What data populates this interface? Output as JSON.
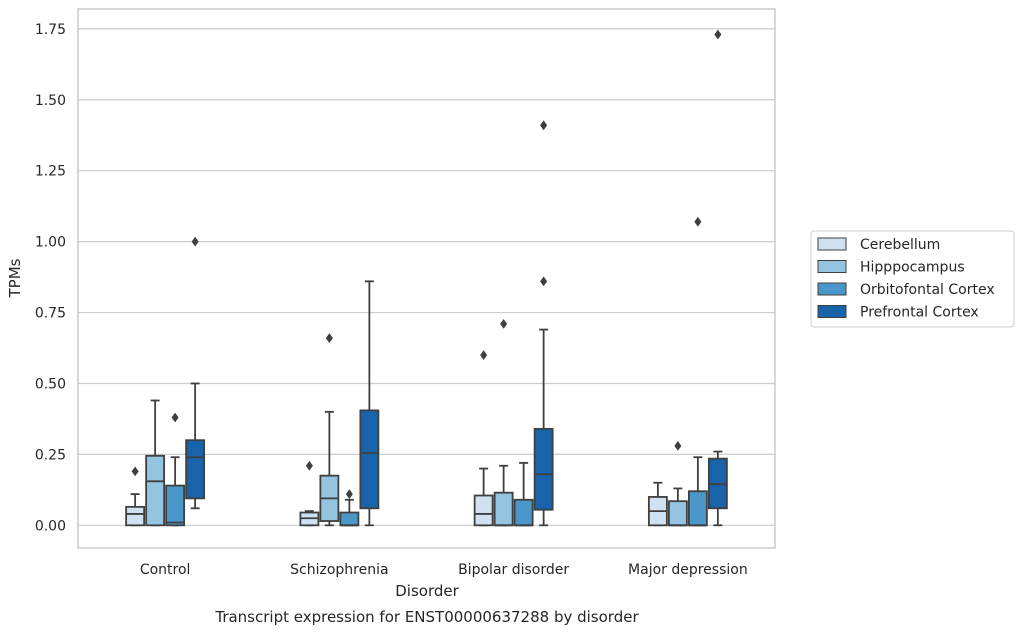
{
  "chart_data": {
    "type": "box",
    "title": "",
    "caption": "Transcript expression for ENST00000637288 by disorder",
    "xlabel": "Disorder",
    "ylabel": "TPMs",
    "ylim": [
      -0.08,
      1.82
    ],
    "yticks": [
      "0.00",
      "0.25",
      "0.50",
      "0.75",
      "1.00",
      "1.25",
      "1.50",
      "1.75"
    ],
    "categories": [
      "Control",
      "Schizophrenia",
      "Bipolar disorder",
      "Major depression"
    ],
    "grid": "horizontal",
    "legend_position": "right",
    "series": [
      {
        "name": "Cerebellum",
        "color": "#d0e1f2",
        "boxes": [
          {
            "whislo": 0.0,
            "q1": 0.0,
            "med": 0.04,
            "q3": 0.065,
            "whishi": 0.11,
            "fliers": [
              0.19
            ]
          },
          {
            "whislo": 0.0,
            "q1": 0.0,
            "med": 0.025,
            "q3": 0.045,
            "whishi": 0.05,
            "fliers": [
              0.21
            ]
          },
          {
            "whislo": 0.0,
            "q1": 0.0,
            "med": 0.04,
            "q3": 0.105,
            "whishi": 0.2,
            "fliers": [
              0.6
            ]
          },
          {
            "whislo": 0.0,
            "q1": 0.0,
            "med": 0.05,
            "q3": 0.1,
            "whishi": 0.15,
            "fliers": []
          }
        ]
      },
      {
        "name": "Hipppocampus",
        "color": "#94c4df",
        "boxes": [
          {
            "whislo": 0.0,
            "q1": 0.0,
            "med": 0.155,
            "q3": 0.245,
            "whishi": 0.44,
            "fliers": []
          },
          {
            "whislo": 0.0,
            "q1": 0.015,
            "med": 0.095,
            "q3": 0.175,
            "whishi": 0.4,
            "fliers": [
              0.66
            ]
          },
          {
            "whislo": 0.0,
            "q1": 0.0,
            "med": 0.0,
            "q3": 0.115,
            "whishi": 0.21,
            "fliers": [
              0.71
            ]
          },
          {
            "whislo": 0.0,
            "q1": 0.0,
            "med": 0.0,
            "q3": 0.085,
            "whishi": 0.13,
            "fliers": [
              0.28
            ]
          }
        ]
      },
      {
        "name": "Orbitofontal Cortex",
        "color": "#4a98c9",
        "boxes": [
          {
            "whislo": 0.0,
            "q1": 0.0,
            "med": 0.01,
            "q3": 0.14,
            "whishi": 0.24,
            "fliers": [
              0.38
            ]
          },
          {
            "whislo": 0.0,
            "q1": 0.0,
            "med": 0.0,
            "q3": 0.045,
            "whishi": 0.09,
            "fliers": [
              0.11
            ]
          },
          {
            "whislo": 0.0,
            "q1": 0.0,
            "med": 0.0,
            "q3": 0.09,
            "whishi": 0.22,
            "fliers": []
          },
          {
            "whislo": 0.0,
            "q1": 0.0,
            "med": 0.0,
            "q3": 0.12,
            "whishi": 0.24,
            "fliers": [
              1.07
            ]
          }
        ]
      },
      {
        "name": "Prefrontal Cortex",
        "color": "#1764ab",
        "boxes": [
          {
            "whislo": 0.06,
            "q1": 0.095,
            "med": 0.24,
            "q3": 0.3,
            "whishi": 0.5,
            "fliers": [
              1.0
            ]
          },
          {
            "whislo": 0.0,
            "q1": 0.06,
            "med": 0.255,
            "q3": 0.405,
            "whishi": 0.86,
            "fliers": []
          },
          {
            "whislo": 0.0,
            "q1": 0.055,
            "med": 0.18,
            "q3": 0.34,
            "whishi": 0.69,
            "fliers": [
              0.86,
              1.41
            ]
          },
          {
            "whislo": 0.0,
            "q1": 0.06,
            "med": 0.145,
            "q3": 0.235,
            "whishi": 0.26,
            "fliers": [
              1.73
            ]
          }
        ]
      }
    ]
  }
}
